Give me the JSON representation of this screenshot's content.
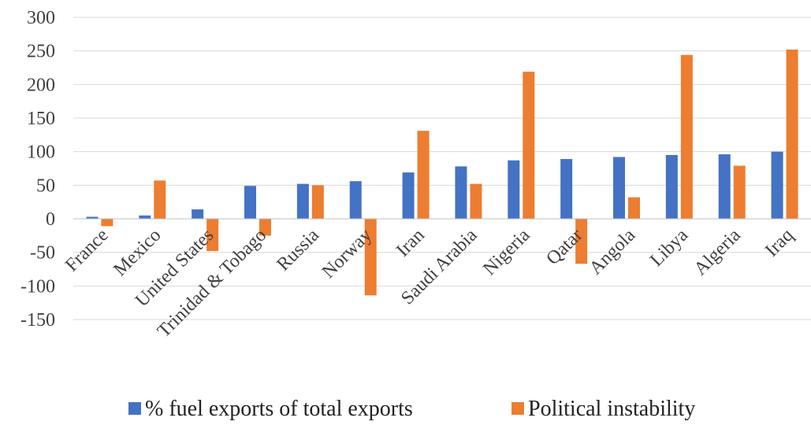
{
  "chart_data": {
    "type": "bar",
    "categories": [
      "France",
      "Mexico",
      "United States",
      "Trinidad & Tobago",
      "Russia",
      "Norway",
      "Iran",
      "Saudi Arabia",
      "Nigeria",
      "Qatar",
      "Angola",
      "Libya",
      "Algeria",
      "Iraq"
    ],
    "series": [
      {
        "name": "% fuel exports of total exports",
        "color": "#4472C4",
        "values": [
          3,
          5,
          14,
          49,
          52,
          56,
          69,
          78,
          87,
          89,
          92,
          95,
          96,
          100
        ]
      },
      {
        "name": "Political instability",
        "color": "#ED7D31",
        "values": [
          -11,
          57,
          -48,
          -25,
          50,
          -114,
          131,
          52,
          219,
          -67,
          32,
          244,
          79,
          252
        ]
      }
    ],
    "ylim": [
      -150,
      300
    ],
    "yticks": [
      300,
      250,
      200,
      150,
      100,
      50,
      0,
      -50,
      -100,
      -150
    ],
    "grid": true,
    "legend_position": "bottom",
    "title": "",
    "xlabel": "",
    "ylabel": ""
  }
}
